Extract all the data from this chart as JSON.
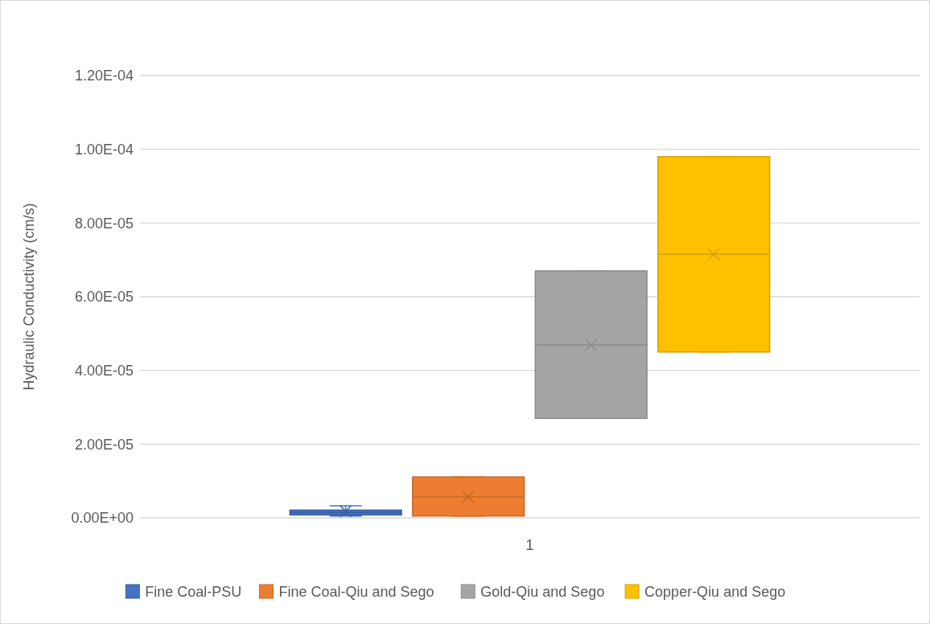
{
  "chart_data": {
    "type": "box",
    "ylabel": "Hydraulic Conductivity (cm/s)",
    "categories": [
      "1"
    ],
    "ylim": [
      0,
      0.00012
    ],
    "yticks": [
      {
        "value": 0,
        "label": "0.00E+00"
      },
      {
        "value": 2e-05,
        "label": "2.00E-05"
      },
      {
        "value": 4e-05,
        "label": "4.00E-05"
      },
      {
        "value": 6e-05,
        "label": "6.00E-05"
      },
      {
        "value": 8e-05,
        "label": "8.00E-05"
      },
      {
        "value": 0.0001,
        "label": "1.00E-04"
      },
      {
        "value": 0.00012,
        "label": "1.20E-04"
      }
    ],
    "grid": "y",
    "legend": "bottom",
    "marker": "cross",
    "series": [
      {
        "name": "Fine Coal-PSU",
        "color": "#4472c4",
        "boxes": [
          {
            "low": 5e-07,
            "q1": 8e-07,
            "median": 1.5e-06,
            "q3": 2.1e-06,
            "high": 3.3e-06,
            "mean": 1.8e-06
          }
        ]
      },
      {
        "name": "Fine Coal-Qiu and Sego",
        "color": "#ed7d31",
        "boxes": [
          {
            "low": 5e-07,
            "q1": 5e-07,
            "median": 5.7e-06,
            "q3": 1.11e-05,
            "high": 1.11e-05,
            "mean": 5.7e-06
          }
        ]
      },
      {
        "name": "Gold-Qiu and Sego",
        "color": "#a5a5a5",
        "boxes": [
          {
            "low": 2.7e-05,
            "q1": 2.7e-05,
            "median": 4.69e-05,
            "q3": 6.7e-05,
            "high": 6.7e-05,
            "mean": 4.69e-05
          }
        ]
      },
      {
        "name": "Copper-Qiu and Sego",
        "color": "#ffc000",
        "boxes": [
          {
            "low": 4.5e-05,
            "q1": 4.5e-05,
            "median": 7.15e-05,
            "q3": 9.8e-05,
            "high": 9.8e-05,
            "mean": 7.15e-05
          }
        ]
      }
    ]
  }
}
